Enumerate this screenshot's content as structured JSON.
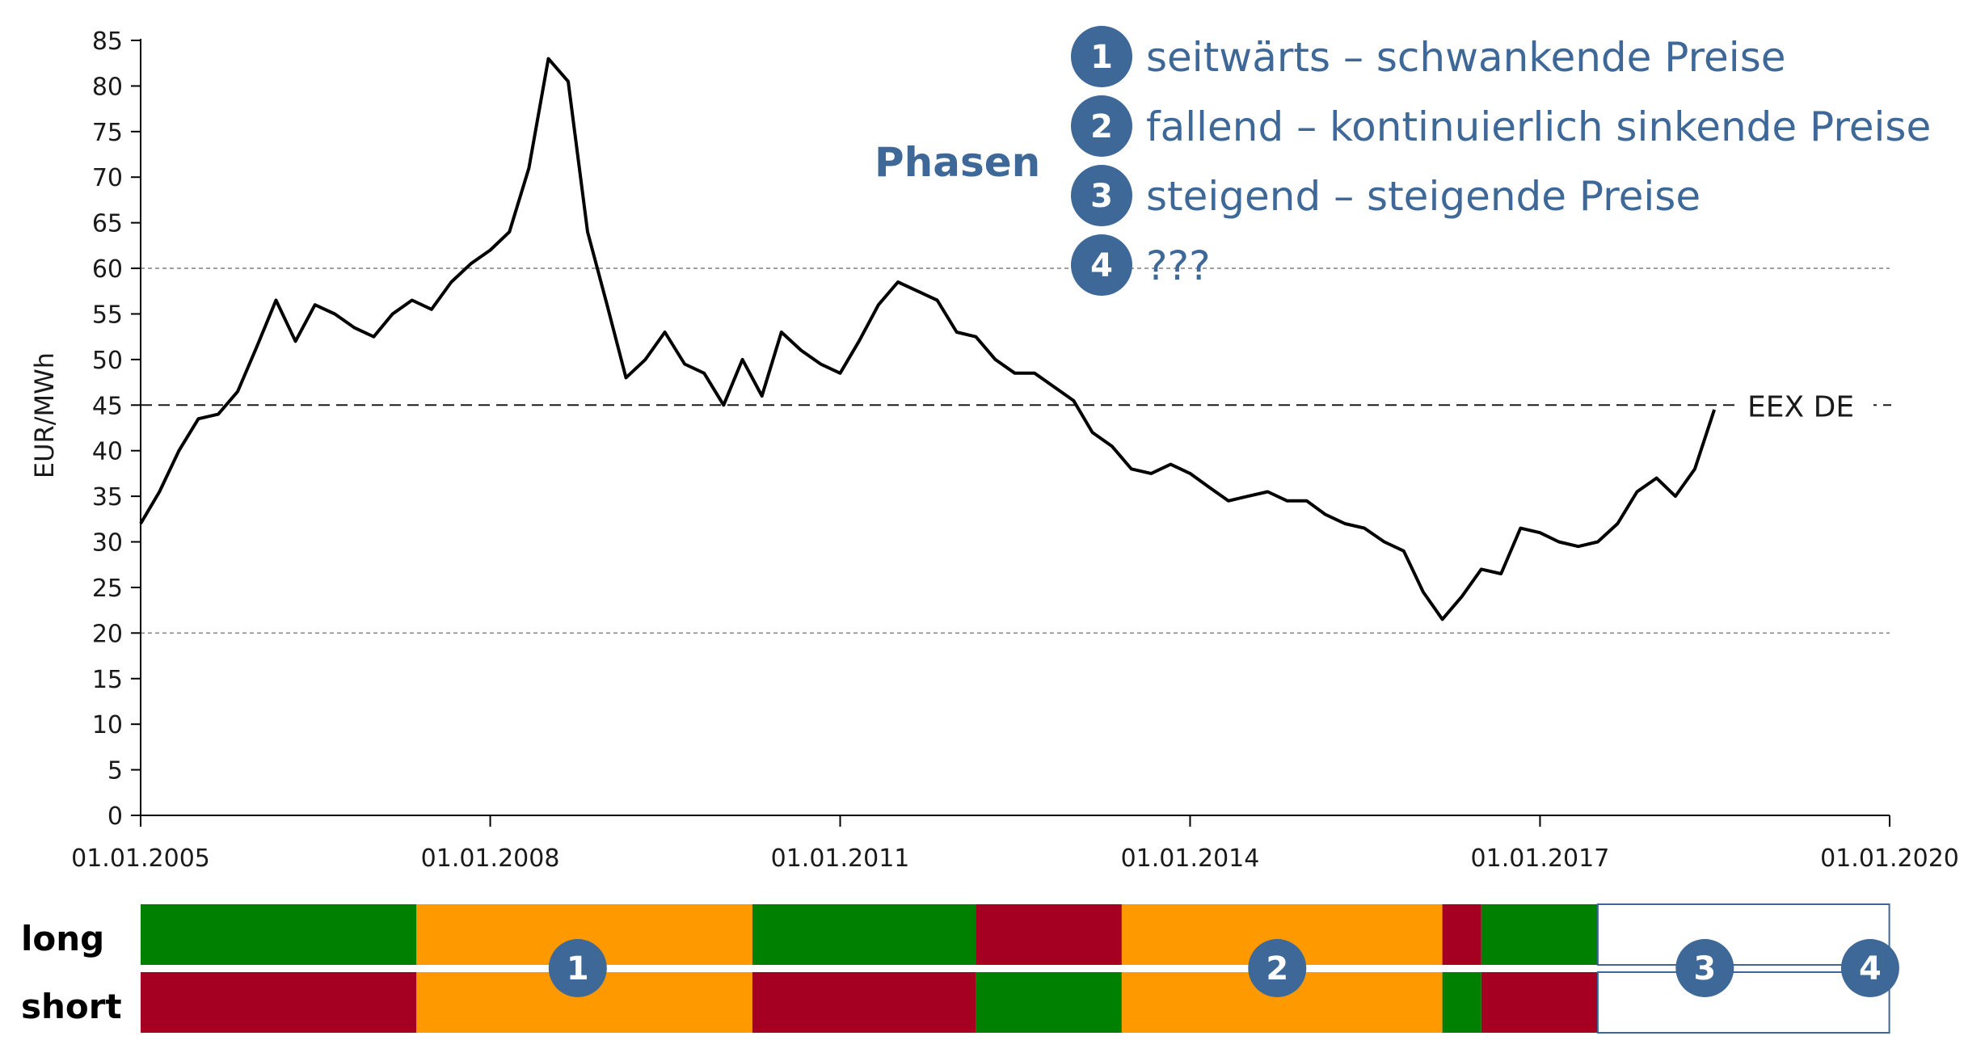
{
  "chart_data": {
    "type": "line",
    "ylabel": "EUR/MWh",
    "ylim": [
      0,
      85
    ],
    "y_ticks": [
      "0",
      "5",
      "10",
      "15",
      "20",
      "25",
      "30",
      "35",
      "40",
      "45",
      "50",
      "55",
      "60",
      "65",
      "70",
      "75",
      "80",
      "85"
    ],
    "x_range": [
      "2005-01-01",
      "2020-01-01"
    ],
    "x_ticks": [
      "01.01.2005",
      "01.01.2008",
      "01.01.2011",
      "01.01.2014",
      "01.01.2017",
      "01.01.2020"
    ],
    "grid": false,
    "reference_lines": [
      {
        "y": 60,
        "style": "dotted"
      },
      {
        "y": 20,
        "style": "dotted"
      },
      {
        "y": 45,
        "style": "dashed",
        "label": "EEX DE"
      }
    ],
    "series": [
      {
        "color": "#000000",
        "x": [
          "2005-01-01",
          "2005-03-01",
          "2005-05-01",
          "2005-07-01",
          "2005-09-01",
          "2005-11-01",
          "2006-01-01",
          "2006-03-01",
          "2006-05-01",
          "2006-07-01",
          "2006-09-01",
          "2006-11-01",
          "2007-01-01",
          "2007-03-01",
          "2007-05-01",
          "2007-07-01",
          "2007-09-01",
          "2007-11-01",
          "2008-01-01",
          "2008-03-01",
          "2008-05-01",
          "2008-07-01",
          "2008-09-01",
          "2008-11-01",
          "2009-01-01",
          "2009-03-01",
          "2009-05-01",
          "2009-07-01",
          "2009-09-01",
          "2009-11-01",
          "2010-01-01",
          "2010-03-01",
          "2010-05-01",
          "2010-07-01",
          "2010-09-01",
          "2010-11-01",
          "2011-01-01",
          "2011-03-01",
          "2011-05-01",
          "2011-07-01",
          "2011-09-01",
          "2011-11-01",
          "2012-01-01",
          "2012-03-01",
          "2012-05-01",
          "2012-07-01",
          "2012-09-01",
          "2012-11-01",
          "2013-01-01",
          "2013-03-01",
          "2013-05-01",
          "2013-07-01",
          "2013-09-01",
          "2013-11-01",
          "2014-01-01",
          "2014-03-01",
          "2014-05-01",
          "2014-07-01",
          "2014-09-01",
          "2014-11-01",
          "2015-01-01",
          "2015-03-01",
          "2015-05-01",
          "2015-07-01",
          "2015-09-01",
          "2015-11-01",
          "2016-01-01",
          "2016-03-01",
          "2016-05-01",
          "2016-07-01",
          "2016-09-01",
          "2016-11-01",
          "2017-01-01",
          "2017-03-01",
          "2017-05-01",
          "2017-07-01",
          "2017-09-01",
          "2017-11-01",
          "2018-01-01",
          "2018-03-01",
          "2018-05-01",
          "2018-07-01"
        ],
        "values": [
          32,
          35.5,
          40,
          43.5,
          44,
          46.5,
          51.5,
          56.5,
          52,
          56,
          55,
          53.5,
          52.5,
          55,
          56.5,
          55.5,
          58.5,
          60.5,
          62,
          64,
          71,
          83,
          80.5,
          64,
          56,
          48,
          50,
          53,
          49.5,
          48.5,
          45,
          50,
          46,
          53,
          51,
          49.5,
          48.5,
          52,
          56,
          58.5,
          57.5,
          56.5,
          53,
          52.5,
          50,
          48.5,
          48.5,
          47,
          45.5,
          42,
          40.5,
          38,
          37.5,
          38.5,
          37.5,
          36,
          34.5,
          35,
          35.5,
          34.5,
          34.5,
          33,
          32,
          31.5,
          30,
          29,
          24.5,
          21.5,
          24,
          27,
          26.5,
          31.5,
          31,
          30,
          29.5,
          30,
          32,
          35.5,
          37,
          35,
          38,
          44.5
        ]
      }
    ]
  },
  "phasen": {
    "title": "Phasen",
    "items": [
      {
        "num": "1",
        "text": "seitwärts – schwankende Preise"
      },
      {
        "num": "2",
        "text": "fallend – kontinuierlich sinkende Preise"
      },
      {
        "num": "3",
        "text": "steigend – steigende Preise"
      },
      {
        "num": "4",
        "text": "???"
      }
    ]
  },
  "positions": {
    "rows": [
      "long",
      "short"
    ],
    "colors": {
      "green": "#008000",
      "orange": "#ff9900",
      "red": "#a50021",
      "white": "#ffffff",
      "circle": "#3d6898"
    },
    "segments": [
      {
        "start": "2005-01-01",
        "end": "2007-05-15",
        "long": "green",
        "short": "red"
      },
      {
        "start": "2007-05-15",
        "end": "2010-04-01",
        "long": "orange",
        "short": "orange"
      },
      {
        "start": "2010-04-01",
        "end": "2012-03-01",
        "long": "green",
        "short": "red"
      },
      {
        "start": "2012-03-01",
        "end": "2013-06-01",
        "long": "red",
        "short": "green"
      },
      {
        "start": "2013-06-01",
        "end": "2016-03-01",
        "long": "orange",
        "short": "orange"
      },
      {
        "start": "2016-03-01",
        "end": "2016-07-01",
        "long": "red",
        "short": "green"
      },
      {
        "start": "2016-07-01",
        "end": "2017-07-01",
        "long": "green",
        "short": "red"
      },
      {
        "start": "2017-07-01",
        "end": "2019-12-31",
        "long": "white",
        "short": "white"
      }
    ],
    "phase_markers": [
      {
        "num": "1",
        "at": "2008-10-01"
      },
      {
        "num": "2",
        "at": "2014-10-01"
      },
      {
        "num": "3",
        "at": "2018-06-01"
      },
      {
        "num": "4",
        "at": "2019-11-01"
      }
    ]
  }
}
